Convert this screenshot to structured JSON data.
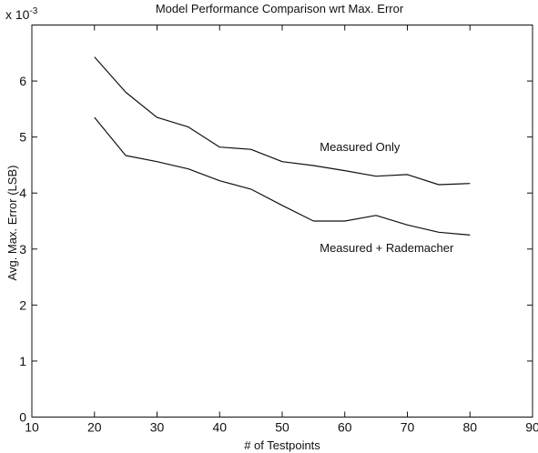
{
  "chart_data": {
    "type": "line",
    "title": "Model Performance Comparison wrt Max. Error",
    "xlabel": "# of Testpoints",
    "ylabel": "Avg. Max. Error (LSB)",
    "y_multiplier_label": "x 10",
    "y_multiplier_exponent": "-3",
    "xlim": [
      10,
      90
    ],
    "ylim": [
      0,
      7
    ],
    "x_ticks": [
      "10",
      "20",
      "30",
      "40",
      "50",
      "60",
      "70",
      "80",
      "90"
    ],
    "y_ticks": [
      "0",
      "1",
      "2",
      "3",
      "4",
      "5",
      "6"
    ],
    "grid": false,
    "x": [
      20,
      25,
      30,
      35,
      40,
      45,
      50,
      55,
      60,
      65,
      70,
      75,
      80
    ],
    "series": [
      {
        "name": "Measured Only",
        "values": [
          6.43,
          5.8,
          5.35,
          5.18,
          4.82,
          4.78,
          4.56,
          4.49,
          4.4,
          4.3,
          4.33,
          4.15,
          4.17
        ]
      },
      {
        "name": "Measured + Rademacher",
        "values": [
          5.35,
          4.67,
          4.56,
          4.43,
          4.22,
          4.07,
          3.78,
          3.5,
          3.5,
          3.6,
          3.43,
          3.3,
          3.25
        ]
      }
    ],
    "annotations": [
      {
        "text": "Measured Only",
        "x": 56,
        "y": 4.75
      },
      {
        "text": "Measured + Rademacher",
        "x": 56,
        "y": 2.95
      }
    ]
  }
}
